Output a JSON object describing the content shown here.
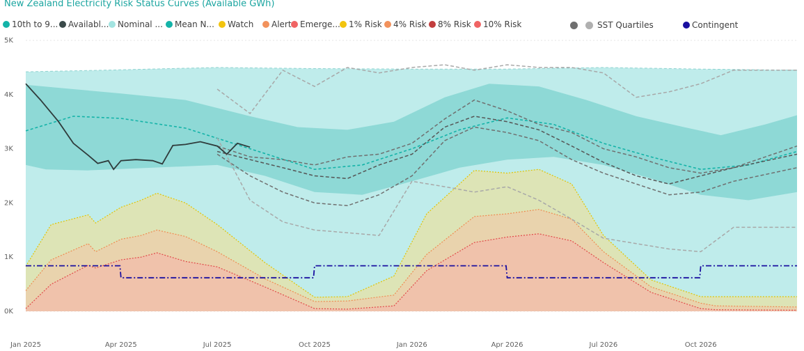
{
  "chart_data": {
    "type": "area",
    "title": "New Zealand Electricity Risk Status Curves (Available GWh)",
    "xlabel": "",
    "ylabel": "",
    "ylim": [
      0,
      5000
    ],
    "y_ticks": [
      {
        "value": 0,
        "label": "0K"
      },
      {
        "value": 1000,
        "label": "1K"
      },
      {
        "value": 2000,
        "label": "2K"
      },
      {
        "value": 3000,
        "label": "3K"
      },
      {
        "value": 4000,
        "label": "4K"
      },
      {
        "value": 5000,
        "label": "5K"
      }
    ],
    "x_range": [
      "2025-01-01",
      "2026-12-31"
    ],
    "x_ticks": [
      {
        "date": "2025-01-01",
        "label": "Jan 2025"
      },
      {
        "date": "2025-04-01",
        "label": "Apr 2025"
      },
      {
        "date": "2025-07-01",
        "label": "Jul 2025"
      },
      {
        "date": "2025-10-01",
        "label": "Oct 2025"
      },
      {
        "date": "2026-01-01",
        "label": "Jan 2026"
      },
      {
        "date": "2026-04-01",
        "label": "Apr 2026"
      },
      {
        "date": "2026-07-01",
        "label": "Jul 2026"
      },
      {
        "date": "2026-10-01",
        "label": "Oct 2026"
      }
    ],
    "grid": "horizontal dashed",
    "legend_position": "top-left",
    "legend": [
      {
        "label": "10th to 9...",
        "color": "#14b3a8"
      },
      {
        "label": "Availabl...",
        "color": "#3a4a4a"
      },
      {
        "label": "Nominal ...",
        "color": "#a3e4e1"
      },
      {
        "label": "Mean N...",
        "color": "#14b3a8"
      },
      {
        "label": "Watch",
        "color": "#f2c40f"
      },
      {
        "label": "Alert",
        "color": "#f2925c"
      },
      {
        "label": "Emerge...",
        "color": "#f06464"
      },
      {
        "label": "1% Risk",
        "color": "#f2c40f"
      },
      {
        "label": "4% Risk",
        "color": "#f2925c"
      },
      {
        "label": "8% Risk",
        "color": "#c23e3e"
      },
      {
        "label": "10% Risk",
        "color": "#f06464"
      }
    ],
    "sst_label": "SST Quartiles",
    "sst_colors": [
      "#707070",
      "#b0b0b0"
    ],
    "contingent_label": "Contingent",
    "contingent_color": "#1a0fa0",
    "series": [
      {
        "name": "Nominal ...",
        "dates": [
          "2025-01-01",
          "2025-03-15",
          "2025-07-01",
          "2025-10-01",
          "2026-01-01",
          "2026-04-01",
          "2026-07-01",
          "2026-10-01",
          "2026-12-31"
        ],
        "values": [
          4420,
          4450,
          4500,
          4480,
          4470,
          4470,
          4500,
          4470,
          4450
        ]
      },
      {
        "name": "10th to 9... (high)",
        "dates": [
          "2025-01-01",
          "2025-02-15",
          "2025-04-01",
          "2025-06-01",
          "2025-08-01",
          "2025-09-15",
          "2025-11-01",
          "2025-12-15",
          "2026-02-01",
          "2026-03-15",
          "2026-05-01",
          "2026-06-15",
          "2026-08-01",
          "2026-09-15",
          "2026-10-20",
          "2026-12-01",
          "2026-12-31"
        ],
        "values": [
          4180,
          4100,
          4020,
          3900,
          3600,
          3400,
          3350,
          3500,
          3950,
          4200,
          4150,
          3900,
          3600,
          3400,
          3250,
          3450,
          3620
        ]
      },
      {
        "name": "10th to 9... (low)",
        "dates": [
          "2025-01-01",
          "2025-01-20",
          "2025-03-01",
          "2025-05-01",
          "2025-07-01",
          "2025-08-15",
          "2025-10-01",
          "2025-11-15",
          "2026-01-01",
          "2026-02-15",
          "2026-04-01",
          "2026-05-15",
          "2026-07-01",
          "2026-08-15",
          "2026-10-01",
          "2026-11-15",
          "2026-12-31"
        ],
        "values": [
          2700,
          2620,
          2600,
          2650,
          2700,
          2500,
          2200,
          2150,
          2400,
          2650,
          2800,
          2850,
          2700,
          2450,
          2150,
          2050,
          2200
        ]
      },
      {
        "name": "Mean N...",
        "dates": [
          "2025-01-01",
          "2025-02-15",
          "2025-04-01",
          "2025-06-01",
          "2025-08-01",
          "2025-10-01",
          "2025-11-15",
          "2026-01-01",
          "2026-02-15",
          "2026-04-01",
          "2026-05-15",
          "2026-07-01",
          "2026-08-15",
          "2026-10-01",
          "2026-11-15",
          "2026-12-31"
        ],
        "values": [
          3330,
          3600,
          3560,
          3380,
          3000,
          2620,
          2700,
          3000,
          3350,
          3570,
          3450,
          3100,
          2850,
          2620,
          2700,
          2950
        ]
      },
      {
        "name": "Availabl...",
        "dates": [
          "2025-01-01",
          "2025-01-15",
          "2025-02-01",
          "2025-02-15",
          "2025-03-01",
          "2025-03-10",
          "2025-03-20",
          "2025-03-25",
          "2025-04-01",
          "2025-04-15",
          "2025-05-01",
          "2025-05-10",
          "2025-05-20",
          "2025-06-01",
          "2025-06-15",
          "2025-07-01",
          "2025-07-10",
          "2025-07-20",
          "2025-08-01"
        ],
        "values": [
          4200,
          3900,
          3500,
          3100,
          2880,
          2730,
          2780,
          2620,
          2780,
          2800,
          2780,
          2720,
          3060,
          3080,
          3130,
          3050,
          2900,
          3100,
          3030
        ]
      },
      {
        "name": "SST Quartiles (q1)",
        "dates": [
          "2025-07-01",
          "2025-08-01",
          "2025-09-01",
          "2025-10-01",
          "2025-11-01",
          "2025-12-01",
          "2026-01-01",
          "2026-02-01",
          "2026-03-01",
          "2026-04-01",
          "2026-05-01",
          "2026-06-01",
          "2026-07-01",
          "2026-08-01",
          "2026-09-01",
          "2026-10-01",
          "2026-11-01",
          "2026-12-31"
        ],
        "values": [
          4100,
          3650,
          4450,
          4150,
          4500,
          4400,
          4500,
          4550,
          4450,
          4550,
          4500,
          4500,
          4400,
          3950,
          4050,
          4200,
          4450,
          4450
        ]
      },
      {
        "name": "SST Quartiles (q2)",
        "dates": [
          "2025-07-01",
          "2025-08-01",
          "2025-09-01",
          "2025-10-01",
          "2025-11-01",
          "2025-12-01",
          "2026-01-01",
          "2026-02-01",
          "2026-03-01",
          "2026-04-01",
          "2026-05-01",
          "2026-06-01",
          "2026-07-01",
          "2026-08-01",
          "2026-09-01",
          "2026-10-01",
          "2026-11-01",
          "2026-12-31"
        ],
        "values": [
          3050,
          2850,
          2800,
          2700,
          2850,
          2900,
          3100,
          3550,
          3900,
          3700,
          3450,
          3300,
          3000,
          2850,
          2650,
          2550,
          2650,
          3050
        ]
      },
      {
        "name": "SST Quartiles (q3)",
        "dates": [
          "2025-07-01",
          "2025-08-01",
          "2025-09-01",
          "2025-10-01",
          "2025-11-01",
          "2025-12-01",
          "2026-01-01",
          "2026-02-01",
          "2026-03-01",
          "2026-04-01",
          "2026-05-01",
          "2026-06-01",
          "2026-07-01",
          "2026-08-01",
          "2026-09-01",
          "2026-10-01",
          "2026-11-01",
          "2026-12-31"
        ],
        "values": [
          2950,
          2800,
          2650,
          2500,
          2450,
          2700,
          2900,
          3400,
          3600,
          3500,
          3350,
          3050,
          2750,
          2500,
          2350,
          2500,
          2650,
          2900
        ]
      },
      {
        "name": "SST Quartiles (q4)",
        "dates": [
          "2025-07-01",
          "2025-08-01",
          "2025-09-01",
          "2025-10-01",
          "2025-11-01",
          "2025-12-01",
          "2026-01-01",
          "2026-02-01",
          "2026-03-01",
          "2026-04-01",
          "2026-05-01",
          "2026-06-01",
          "2026-07-01",
          "2026-08-01",
          "2026-09-01",
          "2026-10-01",
          "2026-11-01",
          "2026-12-31"
        ],
        "values": [
          2900,
          2500,
          2200,
          2000,
          1950,
          2150,
          2500,
          3150,
          3400,
          3300,
          3150,
          2800,
          2550,
          2350,
          2150,
          2200,
          2400,
          2650
        ]
      },
      {
        "name": "SST Quartiles (q5)",
        "dates": [
          "2025-07-01",
          "2025-08-01",
          "2025-09-01",
          "2025-10-01",
          "2025-11-01",
          "2025-12-01",
          "2026-01-01",
          "2026-02-01",
          "2026-03-01",
          "2026-04-01",
          "2026-05-01",
          "2026-06-01",
          "2026-07-01",
          "2026-08-01",
          "2026-09-01",
          "2026-10-01",
          "2026-11-01",
          "2026-12-31"
        ],
        "values": [
          3200,
          2050,
          1650,
          1500,
          1450,
          1400,
          2400,
          2300,
          2200,
          2300,
          2050,
          1700,
          1350,
          1250,
          1150,
          1100,
          1550,
          1550
        ]
      },
      {
        "name": "Watch",
        "dates": [
          "2025-01-01",
          "2025-01-25",
          "2025-03-01",
          "2025-03-08",
          "2025-04-01",
          "2025-04-20",
          "2025-05-05",
          "2025-06-01",
          "2025-07-01",
          "2025-08-15",
          "2025-10-01",
          "2025-11-01",
          "2025-12-15",
          "2026-01-15",
          "2026-03-01",
          "2026-04-01",
          "2026-05-01",
          "2026-06-01",
          "2026-07-01",
          "2026-08-15",
          "2026-10-01",
          "2026-10-15",
          "2026-12-31"
        ],
        "values": [
          830,
          1600,
          1780,
          1630,
          1920,
          2050,
          2180,
          2000,
          1600,
          900,
          260,
          270,
          650,
          1800,
          2600,
          2550,
          2620,
          2350,
          1400,
          580,
          270,
          270,
          270
        ]
      },
      {
        "name": "Alert",
        "dates": [
          "2025-01-01",
          "2025-01-25",
          "2025-03-01",
          "2025-03-08",
          "2025-04-01",
          "2025-04-20",
          "2025-05-05",
          "2025-06-01",
          "2025-07-01",
          "2025-08-15",
          "2025-10-01",
          "2025-11-01",
          "2025-12-15",
          "2026-01-15",
          "2026-03-01",
          "2026-04-01",
          "2026-05-01",
          "2026-06-01",
          "2026-07-01",
          "2026-08-15",
          "2026-10-01",
          "2026-10-15",
          "2026-12-31"
        ],
        "values": [
          380,
          950,
          1250,
          1100,
          1330,
          1400,
          1500,
          1380,
          1100,
          600,
          180,
          190,
          300,
          1050,
          1750,
          1800,
          1880,
          1700,
          1100,
          450,
          150,
          100,
          80
        ]
      },
      {
        "name": "Emerge...",
        "dates": [
          "2025-01-01",
          "2025-01-25",
          "2025-03-01",
          "2025-03-08",
          "2025-04-01",
          "2025-04-20",
          "2025-05-05",
          "2025-06-01",
          "2025-07-01",
          "2025-08-15",
          "2025-10-01",
          "2025-11-01",
          "2025-12-15",
          "2026-01-15",
          "2026-03-01",
          "2026-04-01",
          "2026-05-01",
          "2026-06-01",
          "2026-07-01",
          "2026-08-15",
          "2026-10-01",
          "2026-10-15",
          "2026-12-31"
        ],
        "values": [
          50,
          500,
          850,
          800,
          950,
          1000,
          1080,
          920,
          820,
          450,
          50,
          40,
          100,
          750,
          1270,
          1370,
          1430,
          1300,
          900,
          350,
          50,
          30,
          20
        ]
      },
      {
        "name": "Contingent",
        "dates": [
          "2025-01-01",
          "2025-03-31",
          "2025-04-01",
          "2025-09-30",
          "2025-10-01",
          "2026-03-31",
          "2026-04-01",
          "2026-09-30",
          "2026-10-01",
          "2026-12-31"
        ],
        "values": [
          840,
          840,
          620,
          620,
          840,
          840,
          620,
          620,
          840,
          840
        ]
      }
    ]
  }
}
